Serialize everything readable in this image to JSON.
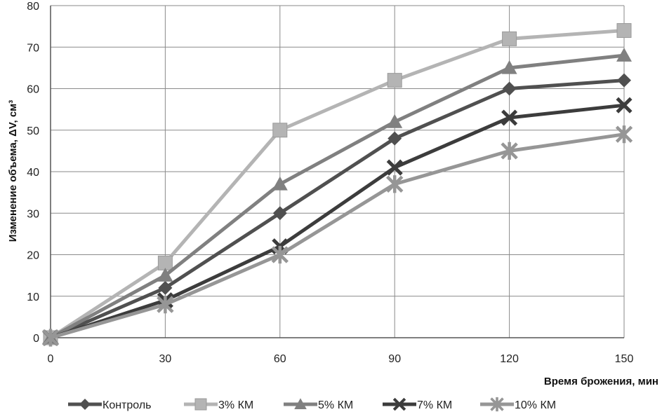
{
  "chart_data": {
    "type": "line",
    "title": "",
    "xlabel": "Время брожения, мин",
    "ylabel": "Изменение объема, ΔV, см³",
    "x": [
      0,
      30,
      60,
      90,
      120,
      150
    ],
    "xlim": [
      0,
      150
    ],
    "ylim": [
      0,
      80
    ],
    "yticks": [
      0,
      10,
      20,
      30,
      40,
      50,
      60,
      70,
      80
    ],
    "xticks": [
      0,
      30,
      60,
      90,
      120,
      150
    ],
    "grid": true,
    "legend_position": "bottom",
    "series": [
      {
        "name": "Контроль",
        "values": [
          0,
          12,
          30,
          48,
          60,
          62
        ],
        "color": "#505050",
        "marker": "diamond"
      },
      {
        "name": "3% КМ",
        "values": [
          0,
          18,
          50,
          62,
          72,
          74
        ],
        "color": "#b4b4b4",
        "marker": "square"
      },
      {
        "name": "5% КМ",
        "values": [
          0,
          15,
          37,
          52,
          65,
          68
        ],
        "color": "#808080",
        "marker": "triangle"
      },
      {
        "name": "7% КМ",
        "values": [
          0,
          9,
          22,
          41,
          53,
          56
        ],
        "color": "#3c3c3c",
        "marker": "x"
      },
      {
        "name": "10% КМ",
        "values": [
          0,
          8,
          20,
          37,
          45,
          49
        ],
        "color": "#969696",
        "marker": "star"
      }
    ]
  }
}
